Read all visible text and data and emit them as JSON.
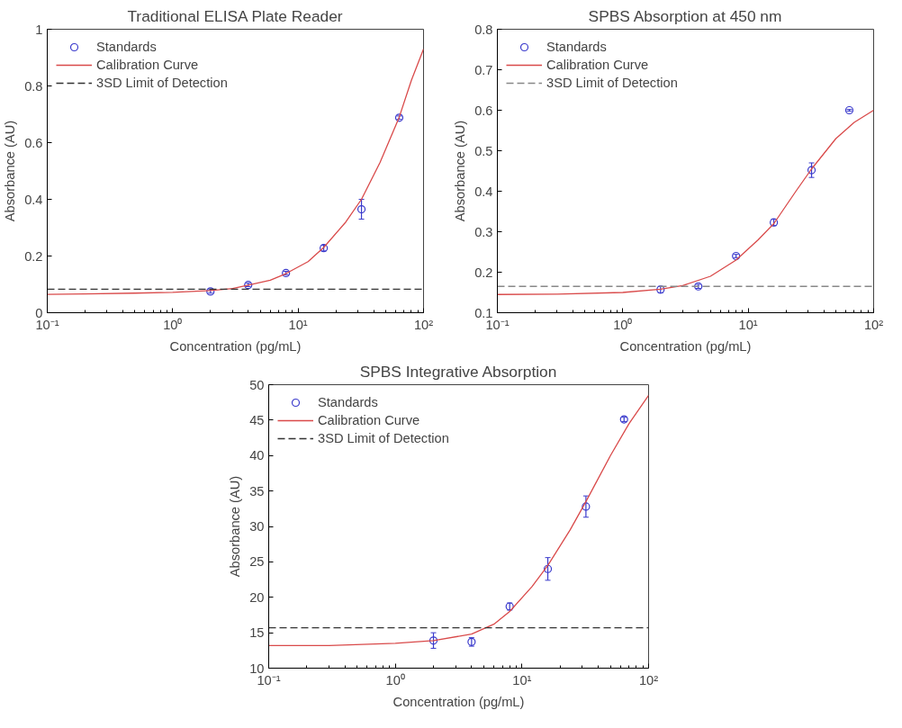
{
  "chart_data": [
    {
      "type": "scatter",
      "title": "Traditional ELISA Plate Reader",
      "xlabel": "Concentration (pg/mL)",
      "ylabel": "Absorbance (AU)",
      "log": "x",
      "grid": false,
      "legend": "top left",
      "xlim": [
        0.1,
        100
      ],
      "xticks": [
        {
          "value": 0.1,
          "label": "10⁻¹"
        },
        {
          "value": 1,
          "label": "10⁰"
        },
        {
          "value": 10,
          "label": "10¹"
        },
        {
          "value": 100,
          "label": "10²"
        }
      ],
      "ylim": [
        0,
        1
      ],
      "yticks": [
        0,
        0.2,
        0.4,
        0.6,
        0.8,
        1
      ],
      "series": [
        {
          "name": "Standards",
          "marker": "circle",
          "color": "#3a3acc",
          "x": [
            2,
            4,
            8,
            16,
            32,
            64
          ],
          "values": [
            0.075,
            0.098,
            0.14,
            0.228,
            0.365,
            0.688
          ],
          "errors": [
            0.006,
            0.006,
            0.006,
            0.01,
            0.035,
            0.006
          ]
        },
        {
          "name": "Calibration Curve",
          "type": "line",
          "color": "#d94a4a",
          "line_style": "solid",
          "x": [
            0.1,
            0.2,
            0.5,
            1,
            2,
            3,
            4,
            6,
            8,
            12,
            16,
            24,
            32,
            45,
            64,
            80,
            100
          ],
          "values": [
            0.065,
            0.066,
            0.069,
            0.072,
            0.078,
            0.085,
            0.097,
            0.115,
            0.138,
            0.18,
            0.23,
            0.32,
            0.4,
            0.53,
            0.69,
            0.82,
            0.93
          ]
        }
      ],
      "ref_lines": [
        {
          "axis": "y",
          "value": 0.083,
          "label": "3SD Limit of Detection",
          "color": "#333333",
          "line_style": "dashed"
        }
      ]
    },
    {
      "type": "scatter",
      "title": "SPBS Absorption at 450 nm",
      "xlabel": "Concentration (pg/mL)",
      "ylabel": "Absorbance (AU)",
      "log": "x",
      "grid": false,
      "legend": "top left",
      "xlim": [
        0.1,
        100
      ],
      "xticks": [
        {
          "value": 0.1,
          "label": "10⁻¹"
        },
        {
          "value": 1,
          "label": "10⁰"
        },
        {
          "value": 10,
          "label": "10¹"
        },
        {
          "value": 100,
          "label": "10²"
        }
      ],
      "ylim": [
        0.1,
        0.8
      ],
      "yticks": [
        0.1,
        0.2,
        0.3,
        0.4,
        0.5,
        0.6,
        0.7,
        0.8
      ],
      "series": [
        {
          "name": "Standards",
          "marker": "circle",
          "color": "#3a3acc",
          "x": [
            2,
            4,
            8,
            16,
            32,
            64
          ],
          "values": [
            0.157,
            0.165,
            0.24,
            0.323,
            0.452,
            0.6
          ],
          "errors": [
            0.008,
            0.005,
            0.004,
            0.008,
            0.018,
            0.002
          ]
        },
        {
          "name": "Calibration Curve",
          "type": "line",
          "color": "#d94a4a",
          "line_style": "solid",
          "x": [
            0.1,
            0.3,
            1,
            2,
            3,
            5,
            8,
            12,
            16,
            24,
            32,
            50,
            70,
            100
          ],
          "values": [
            0.145,
            0.146,
            0.15,
            0.158,
            0.167,
            0.19,
            0.23,
            0.28,
            0.32,
            0.4,
            0.455,
            0.53,
            0.57,
            0.6
          ]
        }
      ],
      "ref_lines": [
        {
          "axis": "y",
          "value": 0.165,
          "label": "3SD Limit of Detection",
          "color": "#888888",
          "line_style": "dashed"
        }
      ]
    },
    {
      "type": "scatter",
      "title": "SPBS Integrative Absorption",
      "xlabel": "Concentration (pg/mL)",
      "ylabel": "Absorbance (AU)",
      "log": "x",
      "grid": false,
      "legend": "top left",
      "xlim": [
        0.1,
        100
      ],
      "xticks": [
        {
          "value": 0.1,
          "label": "10⁻¹"
        },
        {
          "value": 1,
          "label": "10⁰"
        },
        {
          "value": 10,
          "label": "10¹"
        },
        {
          "value": 100,
          "label": "10²"
        }
      ],
      "ylim": [
        10,
        50
      ],
      "yticks": [
        10,
        15,
        20,
        25,
        30,
        35,
        40,
        45,
        50
      ],
      "series": [
        {
          "name": "Standards",
          "marker": "circle",
          "color": "#3a3acc",
          "x": [
            2,
            4,
            8,
            16,
            32,
            64
          ],
          "values": [
            13.9,
            13.7,
            18.7,
            24,
            32.8,
            45.1
          ],
          "errors": [
            1.1,
            0.6,
            0.5,
            1.6,
            1.5,
            0.3
          ]
        },
        {
          "name": "Calibration Curve",
          "type": "line",
          "color": "#d94a4a",
          "line_style": "solid",
          "x": [
            0.1,
            0.3,
            1,
            2,
            4,
            6,
            8,
            12,
            16,
            24,
            32,
            50,
            70,
            100
          ],
          "values": [
            13.2,
            13.2,
            13.5,
            13.9,
            14.8,
            16.2,
            18,
            21.5,
            24.5,
            29.5,
            33.5,
            40,
            44.5,
            48.5
          ]
        }
      ],
      "ref_lines": [
        {
          "axis": "y",
          "value": 15.7,
          "label": "3SD Limit of Detection",
          "color": "#333333",
          "line_style": "dashed"
        }
      ]
    }
  ]
}
